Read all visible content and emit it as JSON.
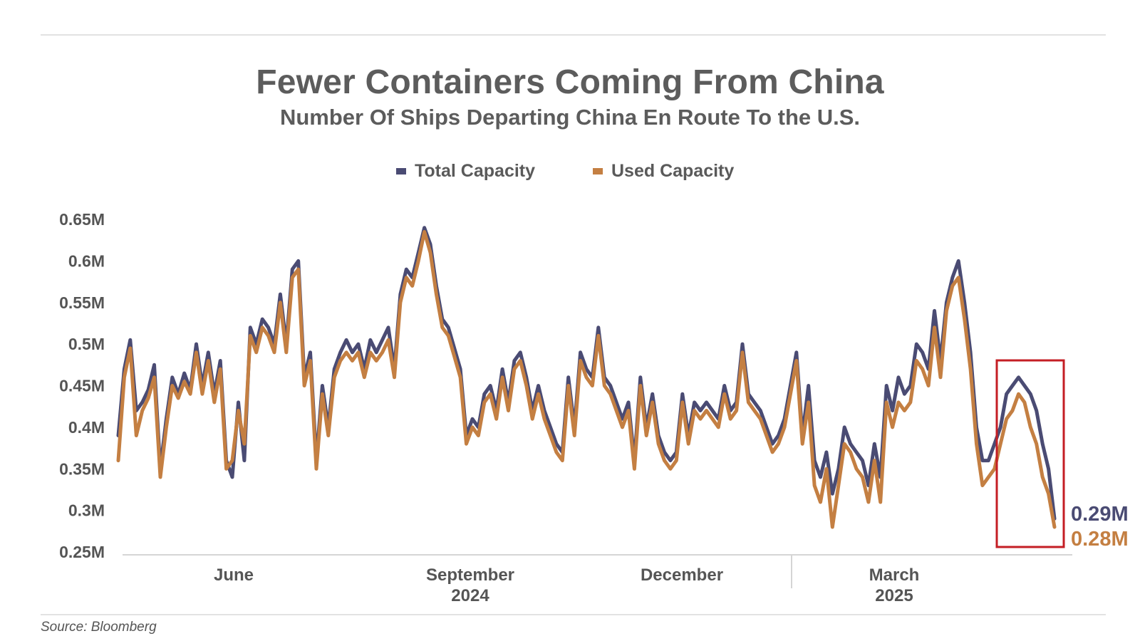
{
  "colors": {
    "total": "#4a4b73",
    "used": "#c47f42",
    "highlight": "#c41e24",
    "axis": "#d5d5d5"
  },
  "chart_data": {
    "type": "line",
    "title": "Fewer Containers Coming From China",
    "subtitle": "Number Of Ships Departing China En Route To the U.S.",
    "source": "Source: Bloomberg",
    "y_ticks": [
      "0.65M",
      "0.6M",
      "0.55M",
      "0.5M",
      "0.45M",
      "0.4M",
      "0.35M",
      "0.3M",
      "0.25M"
    ],
    "ylim": [
      0.25,
      0.65
    ],
    "x_ticks": [
      {
        "label": "June",
        "sublabel": ""
      },
      {
        "label": "September",
        "sublabel": "2024"
      },
      {
        "label": "December",
        "sublabel": ""
      },
      {
        "label": "March",
        "sublabel": "2025"
      }
    ],
    "end_labels": {
      "total": "0.29M",
      "used": "0.28M"
    },
    "series": [
      {
        "name": "Total Capacity",
        "color": "#4a4b73",
        "values": [
          0.39,
          0.47,
          0.505,
          0.42,
          0.43,
          0.445,
          0.475,
          0.35,
          0.41,
          0.46,
          0.44,
          0.465,
          0.445,
          0.5,
          0.45,
          0.49,
          0.44,
          0.48,
          0.36,
          0.34,
          0.43,
          0.36,
          0.52,
          0.5,
          0.53,
          0.52,
          0.5,
          0.56,
          0.5,
          0.59,
          0.6,
          0.46,
          0.49,
          0.36,
          0.45,
          0.4,
          0.47,
          0.49,
          0.505,
          0.49,
          0.5,
          0.47,
          0.505,
          0.49,
          0.505,
          0.52,
          0.47,
          0.56,
          0.59,
          0.58,
          0.61,
          0.64,
          0.62,
          0.57,
          0.53,
          0.52,
          0.495,
          0.47,
          0.39,
          0.41,
          0.4,
          0.44,
          0.45,
          0.42,
          0.47,
          0.43,
          0.48,
          0.49,
          0.46,
          0.42,
          0.45,
          0.42,
          0.4,
          0.38,
          0.37,
          0.46,
          0.4,
          0.49,
          0.47,
          0.46,
          0.52,
          0.46,
          0.45,
          0.43,
          0.41,
          0.43,
          0.36,
          0.46,
          0.4,
          0.44,
          0.39,
          0.37,
          0.36,
          0.37,
          0.44,
          0.39,
          0.43,
          0.42,
          0.43,
          0.42,
          0.41,
          0.45,
          0.42,
          0.43,
          0.5,
          0.44,
          0.43,
          0.42,
          0.4,
          0.38,
          0.39,
          0.41,
          0.45,
          0.49,
          0.39,
          0.45,
          0.36,
          0.34,
          0.37,
          0.32,
          0.35,
          0.4,
          0.38,
          0.37,
          0.36,
          0.33,
          0.38,
          0.34,
          0.45,
          0.42,
          0.46,
          0.44,
          0.45,
          0.5,
          0.49,
          0.47,
          0.54,
          0.48,
          0.55,
          0.58,
          0.6,
          0.55,
          0.49,
          0.4,
          0.36,
          0.36,
          0.38,
          0.4,
          0.44,
          0.45,
          0.46,
          0.45,
          0.44,
          0.42,
          0.38,
          0.35,
          0.29
        ]
      },
      {
        "name": "Used Capacity",
        "color": "#c47f42",
        "values": [
          0.36,
          0.46,
          0.495,
          0.39,
          0.42,
          0.435,
          0.46,
          0.34,
          0.4,
          0.45,
          0.435,
          0.455,
          0.44,
          0.49,
          0.44,
          0.48,
          0.43,
          0.47,
          0.35,
          0.36,
          0.42,
          0.38,
          0.51,
          0.49,
          0.52,
          0.51,
          0.49,
          0.55,
          0.49,
          0.58,
          0.59,
          0.45,
          0.48,
          0.35,
          0.44,
          0.39,
          0.46,
          0.48,
          0.49,
          0.48,
          0.49,
          0.46,
          0.49,
          0.48,
          0.49,
          0.505,
          0.46,
          0.55,
          0.58,
          0.57,
          0.6,
          0.635,
          0.61,
          0.56,
          0.52,
          0.51,
          0.485,
          0.46,
          0.38,
          0.4,
          0.39,
          0.43,
          0.44,
          0.41,
          0.46,
          0.42,
          0.47,
          0.48,
          0.45,
          0.41,
          0.44,
          0.41,
          0.39,
          0.37,
          0.36,
          0.45,
          0.39,
          0.48,
          0.46,
          0.45,
          0.51,
          0.45,
          0.44,
          0.42,
          0.4,
          0.42,
          0.35,
          0.45,
          0.39,
          0.43,
          0.38,
          0.36,
          0.35,
          0.36,
          0.43,
          0.38,
          0.42,
          0.41,
          0.42,
          0.41,
          0.4,
          0.44,
          0.41,
          0.42,
          0.49,
          0.43,
          0.42,
          0.41,
          0.39,
          0.37,
          0.38,
          0.4,
          0.44,
          0.48,
          0.38,
          0.43,
          0.33,
          0.31,
          0.35,
          0.28,
          0.33,
          0.38,
          0.37,
          0.35,
          0.34,
          0.31,
          0.36,
          0.31,
          0.43,
          0.4,
          0.43,
          0.42,
          0.43,
          0.48,
          0.47,
          0.45,
          0.52,
          0.46,
          0.54,
          0.57,
          0.58,
          0.53,
          0.47,
          0.38,
          0.33,
          0.34,
          0.35,
          0.38,
          0.41,
          0.42,
          0.44,
          0.43,
          0.4,
          0.38,
          0.34,
          0.32,
          0.28
        ]
      }
    ]
  }
}
